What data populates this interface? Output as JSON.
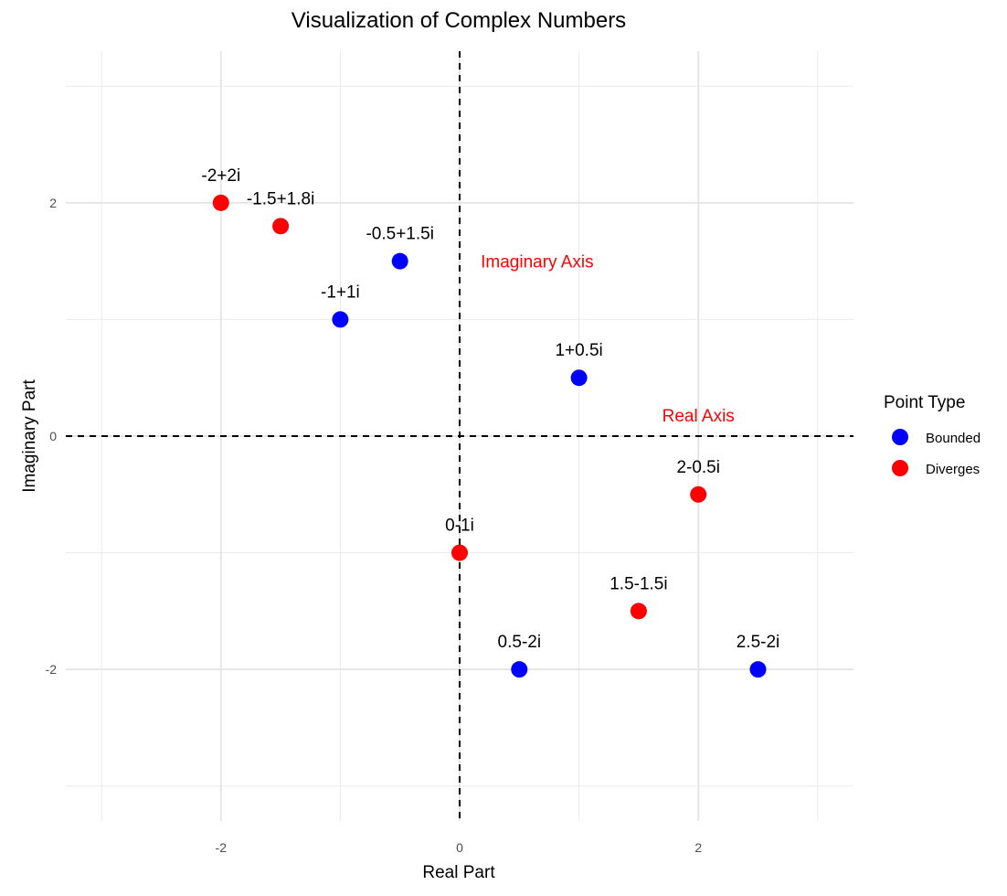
{
  "chart_data": {
    "type": "scatter",
    "title": "Visualization of Complex Numbers",
    "xlabel": "Real Part",
    "ylabel": "Imaginary Part",
    "xlim": [
      -3.3,
      3.3
    ],
    "ylim": [
      -3.3,
      3.3
    ],
    "x_ticks": [
      -2,
      0,
      2
    ],
    "y_ticks": [
      -2,
      0,
      2
    ],
    "x_tick_labels": [
      "-2",
      "0",
      "2"
    ],
    "y_tick_labels": [
      "-2",
      "0",
      "2"
    ],
    "grid": true,
    "reference_lines": [
      {
        "orientation": "horizontal",
        "value": 0,
        "style": "dashed",
        "color": "#000000"
      },
      {
        "orientation": "vertical",
        "value": 0,
        "style": "dashed",
        "color": "#000000"
      }
    ],
    "annotations": [
      {
        "text": "Imaginary Axis",
        "x": 0.65,
        "y": 1.5,
        "color": "#ff0000"
      },
      {
        "text": "Real Axis",
        "x": 2.0,
        "y": 0.18,
        "color": "#ff0000"
      }
    ],
    "legend": {
      "title": "Point Type",
      "position": "right",
      "entries": [
        {
          "label": "Bounded",
          "color": "#0000ff"
        },
        {
          "label": "Diverges",
          "color": "#ff0000"
        }
      ]
    },
    "points": [
      {
        "label": "-2+2i",
        "x": -2,
        "y": 2,
        "type": "Diverges"
      },
      {
        "label": "-1.5+1.8i",
        "x": -1.5,
        "y": 1.8,
        "type": "Diverges"
      },
      {
        "label": "-0.5+1.5i",
        "x": -0.5,
        "y": 1.5,
        "type": "Bounded"
      },
      {
        "label": "-1+1i",
        "x": -1,
        "y": 1,
        "type": "Bounded"
      },
      {
        "label": "1+0.5i",
        "x": 1,
        "y": 0.5,
        "type": "Bounded"
      },
      {
        "label": "2-0.5i",
        "x": 2,
        "y": -0.5,
        "type": "Diverges"
      },
      {
        "label": "0-1i",
        "x": 0,
        "y": -1,
        "type": "Diverges"
      },
      {
        "label": "1.5-1.5i",
        "x": 1.5,
        "y": -1.5,
        "type": "Diverges"
      },
      {
        "label": "0.5-2i",
        "x": 0.5,
        "y": -2,
        "type": "Bounded"
      },
      {
        "label": "2.5-2i",
        "x": 2.5,
        "y": -2,
        "type": "Bounded"
      }
    ]
  }
}
